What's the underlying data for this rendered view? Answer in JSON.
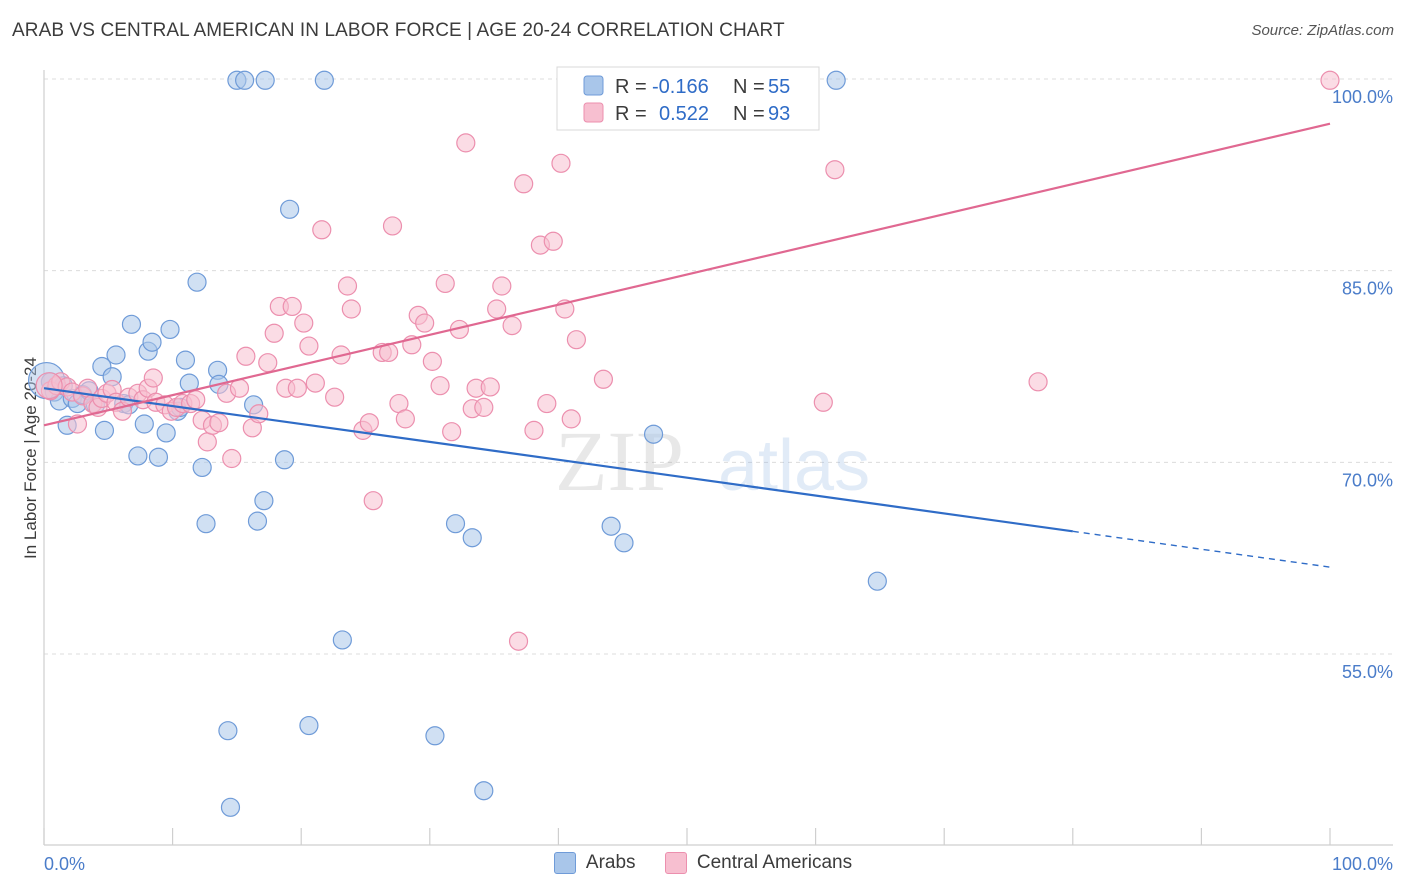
{
  "title": "ARAB VS CENTRAL AMERICAN IN LABOR FORCE | AGE 20-24 CORRELATION CHART",
  "source": "Source: ZipAtlas.com",
  "watermark": {
    "zip": "ZIP",
    "atlas": "atlas"
  },
  "legend": {
    "arabs": {
      "r_label": "R =",
      "r_value": "-0.166",
      "n_label": "N =",
      "n_value": "55"
    },
    "central": {
      "r_label": "R =",
      "r_value": "0.522",
      "n_label": "N =",
      "n_value": "93"
    }
  },
  "bottom_legend": {
    "arabs": "Arabs",
    "central": "Central Americans"
  },
  "colors": {
    "arabs_fill": "#a9c6ea",
    "arabs_stroke": "#6f9bd8",
    "arabs_line": "#2f6cc7",
    "central_fill": "#f7bfd0",
    "central_stroke": "#ec8fae",
    "central_line": "#e06891",
    "tick_text": "#4a7cc9",
    "grid": "#dcdcdc"
  },
  "chart_data": {
    "type": "scatter",
    "title": "ARAB VS CENTRAL AMERICAN IN LABOR FORCE | AGE 20-24 CORRELATION CHART",
    "xlabel": "",
    "ylabel": "In Labor Force | Age 20-24",
    "xlim": [
      0,
      100
    ],
    "ylim": [
      40,
      101
    ],
    "x_tick_labels": [
      "0.0%",
      "100.0%"
    ],
    "y_ticks": [
      55,
      70,
      85,
      100
    ],
    "y_tick_labels": [
      "55.0%",
      "70.0%",
      "85.0%",
      "100.0%"
    ],
    "grid": true,
    "legend_placement": "top-center",
    "series": [
      {
        "name": "Arabs",
        "r": -0.166,
        "n": 55,
        "trend": {
          "x0": 0,
          "y0": 75.8,
          "x1": 80,
          "y1": 64.6,
          "dashed_to_x": 100,
          "dashed_to_y": 61.8
        },
        "points": [
          [
            0.5,
            76.3
          ],
          [
            0.8,
            75.5
          ],
          [
            1.2,
            74.8
          ],
          [
            1.5,
            76.0
          ],
          [
            1.8,
            72.9
          ],
          [
            2.2,
            75.0
          ],
          [
            2.6,
            74.6
          ],
          [
            3.0,
            75.3
          ],
          [
            3.5,
            75.6
          ],
          [
            4.0,
            74.5
          ],
          [
            4.5,
            77.5
          ],
          [
            4.7,
            72.5
          ],
          [
            5.3,
            76.7
          ],
          [
            5.6,
            78.4
          ],
          [
            6.2,
            74.6
          ],
          [
            6.6,
            74.5
          ],
          [
            6.8,
            80.8
          ],
          [
            7.3,
            70.5
          ],
          [
            7.8,
            73.0
          ],
          [
            8.1,
            78.7
          ],
          [
            8.4,
            79.4
          ],
          [
            8.9,
            70.4
          ],
          [
            9.5,
            72.3
          ],
          [
            9.8,
            80.4
          ],
          [
            10.4,
            74.0
          ],
          [
            10.6,
            74.3
          ],
          [
            11.0,
            78.0
          ],
          [
            11.3,
            76.2
          ],
          [
            11.9,
            84.1
          ],
          [
            12.3,
            69.6
          ],
          [
            12.6,
            65.2
          ],
          [
            13.5,
            77.2
          ],
          [
            13.6,
            76.1
          ],
          [
            14.3,
            49.0
          ],
          [
            14.5,
            43.0
          ],
          [
            15.0,
            99.9
          ],
          [
            15.6,
            99.9
          ],
          [
            16.3,
            74.5
          ],
          [
            16.6,
            65.4
          ],
          [
            17.2,
            99.9
          ],
          [
            17.1,
            67.0
          ],
          [
            18.7,
            70.2
          ],
          [
            19.1,
            89.8
          ],
          [
            20.6,
            49.4
          ],
          [
            21.8,
            99.9
          ],
          [
            23.2,
            56.1
          ],
          [
            30.4,
            48.6
          ],
          [
            32.0,
            65.2
          ],
          [
            33.3,
            64.1
          ],
          [
            34.2,
            44.3
          ],
          [
            44.1,
            65.0
          ],
          [
            45.1,
            63.7
          ],
          [
            47.4,
            72.2
          ],
          [
            61.6,
            99.9
          ],
          [
            64.8,
            60.7
          ]
        ]
      },
      {
        "name": "Central Americans",
        "r": 0.522,
        "n": 93,
        "trend": {
          "x0": 0,
          "y0": 72.9,
          "x1": 100,
          "y1": 96.5
        },
        "points": [
          [
            0.5,
            75.6
          ],
          [
            1.0,
            76.0
          ],
          [
            1.3,
            76.3
          ],
          [
            1.8,
            75.9
          ],
          [
            2.2,
            75.5
          ],
          [
            2.6,
            73.0
          ],
          [
            3.0,
            75.2
          ],
          [
            3.4,
            75.8
          ],
          [
            3.8,
            74.6
          ],
          [
            4.2,
            74.3
          ],
          [
            4.5,
            75.0
          ],
          [
            4.9,
            75.4
          ],
          [
            5.3,
            75.7
          ],
          [
            5.6,
            74.7
          ],
          [
            6.1,
            74.0
          ],
          [
            6.6,
            75.1
          ],
          [
            7.3,
            75.4
          ],
          [
            7.7,
            74.9
          ],
          [
            8.1,
            75.8
          ],
          [
            8.5,
            76.6
          ],
          [
            8.7,
            74.7
          ],
          [
            9.4,
            74.5
          ],
          [
            9.9,
            74.0
          ],
          [
            10.3,
            74.3
          ],
          [
            10.8,
            74.6
          ],
          [
            11.4,
            74.6
          ],
          [
            11.8,
            74.9
          ],
          [
            12.3,
            73.3
          ],
          [
            12.7,
            71.6
          ],
          [
            13.1,
            72.9
          ],
          [
            13.6,
            73.1
          ],
          [
            14.2,
            75.4
          ],
          [
            14.6,
            70.3
          ],
          [
            15.2,
            75.8
          ],
          [
            15.7,
            78.3
          ],
          [
            16.2,
            72.7
          ],
          [
            16.7,
            73.8
          ],
          [
            17.4,
            77.8
          ],
          [
            17.9,
            80.1
          ],
          [
            18.3,
            82.2
          ],
          [
            18.8,
            75.8
          ],
          [
            19.3,
            82.2
          ],
          [
            19.7,
            75.8
          ],
          [
            20.2,
            80.9
          ],
          [
            20.6,
            79.1
          ],
          [
            21.1,
            76.2
          ],
          [
            21.6,
            88.2
          ],
          [
            22.6,
            75.1
          ],
          [
            23.1,
            78.4
          ],
          [
            23.6,
            83.8
          ],
          [
            23.9,
            82.0
          ],
          [
            24.8,
            72.5
          ],
          [
            25.3,
            73.1
          ],
          [
            25.6,
            67.0
          ],
          [
            26.3,
            78.6
          ],
          [
            26.8,
            78.6
          ],
          [
            27.1,
            88.5
          ],
          [
            27.6,
            74.6
          ],
          [
            28.1,
            73.4
          ],
          [
            28.6,
            79.2
          ],
          [
            29.1,
            81.5
          ],
          [
            29.6,
            80.9
          ],
          [
            30.2,
            77.9
          ],
          [
            30.8,
            76.0
          ],
          [
            31.2,
            84.0
          ],
          [
            31.7,
            72.4
          ],
          [
            32.3,
            80.4
          ],
          [
            32.8,
            95.0
          ],
          [
            33.3,
            74.2
          ],
          [
            33.6,
            75.8
          ],
          [
            34.2,
            74.3
          ],
          [
            34.7,
            75.9
          ],
          [
            35.2,
            82.0
          ],
          [
            35.6,
            83.8
          ],
          [
            36.4,
            80.7
          ],
          [
            36.9,
            56.0
          ],
          [
            37.3,
            91.8
          ],
          [
            38.1,
            72.5
          ],
          [
            38.6,
            87.0
          ],
          [
            39.1,
            74.6
          ],
          [
            39.6,
            87.3
          ],
          [
            40.2,
            93.4
          ],
          [
            40.5,
            82.0
          ],
          [
            41.0,
            73.4
          ],
          [
            41.4,
            79.6
          ],
          [
            42.0,
            97.6
          ],
          [
            43.5,
            76.5
          ],
          [
            44.6,
            99.9
          ],
          [
            46.0,
            96.9
          ],
          [
            55.6,
            99.9
          ],
          [
            60.6,
            74.7
          ],
          [
            61.5,
            92.9
          ],
          [
            77.3,
            76.3
          ],
          [
            100.0,
            99.9
          ]
        ]
      }
    ]
  }
}
